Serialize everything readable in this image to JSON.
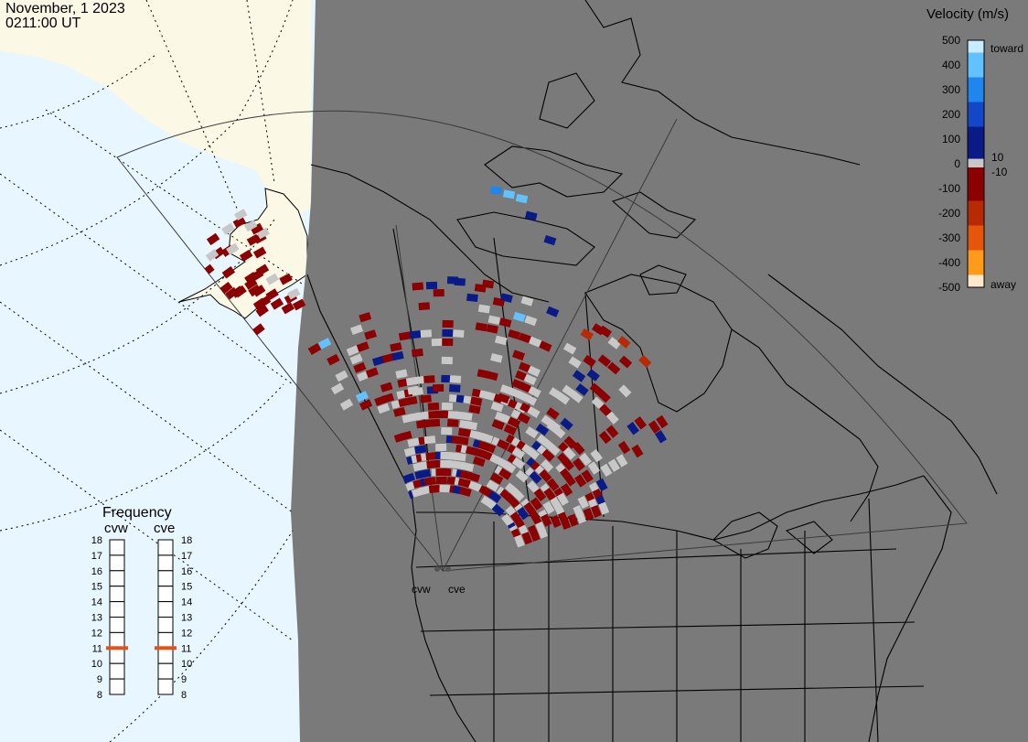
{
  "header": {
    "date": "November, 1 2023",
    "time": "0211:00 UT"
  },
  "colorbar": {
    "title": "Velocity (m/s)",
    "ticks": [
      "500",
      "400",
      "300",
      "200",
      "100",
      "10",
      "0",
      "-10",
      "-100",
      "-200",
      "-300",
      "-400",
      "-500"
    ],
    "toward_label": "toward",
    "away_label": "away",
    "colors": [
      "#ffe8cc",
      "#ff9a1a",
      "#e5550a",
      "#b82a04",
      "#8b0000",
      "#c8c8c8",
      "#0a1a86",
      "#1446c8",
      "#1f86f0",
      "#62c2ff",
      "#c8ecff"
    ]
  },
  "frequency_panel": {
    "title": "Frequency",
    "radars": [
      {
        "name": "cvw",
        "frequency_mhz": 11
      },
      {
        "name": "cve",
        "frequency_mhz": 11
      }
    ],
    "scale": [
      "18",
      "17",
      "16",
      "15",
      "14",
      "13",
      "12",
      "11",
      "10",
      "9",
      "8"
    ],
    "marker_color": "#e0541a"
  },
  "map": {
    "radar_labels": [
      "cvw",
      "cve"
    ],
    "ocean_color": "#e8f6ff",
    "land_color": "#fbf8e6",
    "night_color": "#7a7a7a",
    "scatter_gray": "#c8c8c8"
  }
}
